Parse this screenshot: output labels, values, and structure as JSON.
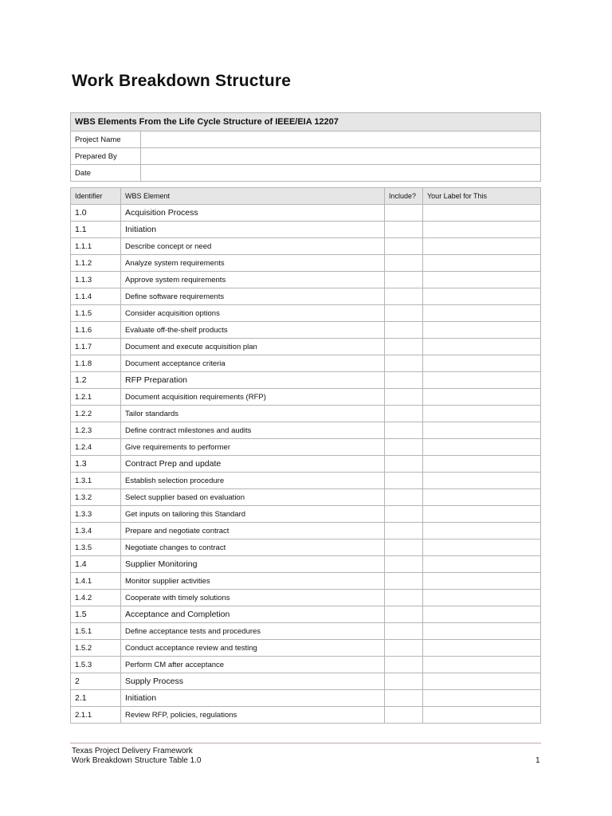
{
  "title": "Work Breakdown Structure",
  "info_table": {
    "heading": "WBS Elements From the Life Cycle Structure of IEEE/EIA 12207",
    "fields": [
      {
        "label": "Project Name",
        "value": ""
      },
      {
        "label": "Prepared By",
        "value": ""
      },
      {
        "label": "Date",
        "value": ""
      }
    ]
  },
  "wbs_table": {
    "headers": [
      "Identifier",
      "WBS Element",
      "Include?",
      "Your Label for This"
    ],
    "rows": [
      {
        "id": "1.0",
        "element": "Acquisition Process",
        "major": true
      },
      {
        "id": "1.1",
        "element": "Initiation",
        "major": true
      },
      {
        "id": "1.1.1",
        "element": "Describe concept or need"
      },
      {
        "id": "1.1.2",
        "element": "Analyze system requirements"
      },
      {
        "id": "1.1.3",
        "element": "Approve system requirements"
      },
      {
        "id": "1.1.4",
        "element": "Define software requirements"
      },
      {
        "id": "1.1.5",
        "element": "Consider acquisition options"
      },
      {
        "id": "1.1.6",
        "element": "Evaluate off-the-shelf products"
      },
      {
        "id": "1.1.7",
        "element": "Document and execute acquisition plan"
      },
      {
        "id": "1.1.8",
        "element": "Document acceptance criteria"
      },
      {
        "id": "1.2",
        "element": "RFP Preparation",
        "major": true
      },
      {
        "id": "1.2.1",
        "element": "Document acquisition requirements (RFP)"
      },
      {
        "id": "1.2.2",
        "element": "Tailor standards"
      },
      {
        "id": "1.2.3",
        "element": "Define contract milestones and audits"
      },
      {
        "id": "1.2.4",
        "element": "Give requirements to performer"
      },
      {
        "id": "1.3",
        "element": "Contract Prep and update",
        "major": true
      },
      {
        "id": "1.3.1",
        "element": "Establish selection procedure"
      },
      {
        "id": "1.3.2",
        "element": "Select supplier based on evaluation"
      },
      {
        "id": "1.3.3",
        "element": "Get inputs on tailoring this Standard"
      },
      {
        "id": "1.3.4",
        "element": "Prepare and negotiate contract"
      },
      {
        "id": "1.3.5",
        "element": "Negotiate changes to contract"
      },
      {
        "id": "1.4",
        "element": "Supplier Monitoring",
        "major": true
      },
      {
        "id": "1.4.1",
        "element": "Monitor supplier activities"
      },
      {
        "id": "1.4.2",
        "element": "Cooperate with timely solutions"
      },
      {
        "id": "1.5",
        "element": "Acceptance and Completion",
        "major": true
      },
      {
        "id": "1.5.1",
        "element": "Define acceptance tests and procedures"
      },
      {
        "id": "1.5.2",
        "element": "Conduct acceptance review and testing"
      },
      {
        "id": "1.5.3",
        "element": "Perform CM after acceptance"
      },
      {
        "id": "2",
        "element": "Supply Process",
        "major": true
      },
      {
        "id": "2.1",
        "element": "Initiation",
        "major": true
      },
      {
        "id": "2.1.1",
        "element": "Review RFP, policies, regulations"
      }
    ]
  },
  "footer": {
    "line1": "Texas Project Delivery Framework",
    "line2": "Work Breakdown Structure Table 1.0",
    "page": "1",
    "rule_color": "#d9a0a0"
  }
}
